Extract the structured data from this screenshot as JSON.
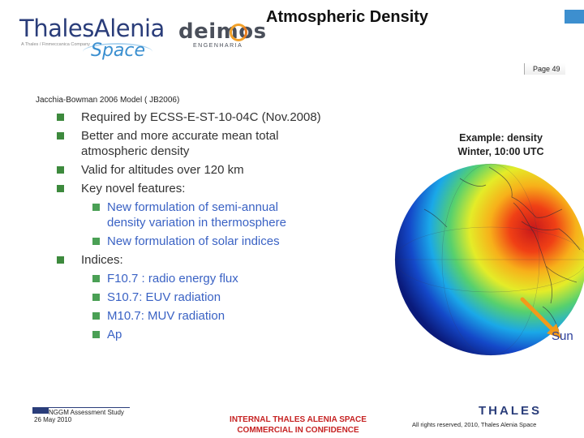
{
  "header": {
    "logo_thales": {
      "brand": "ThalesAlenia",
      "tagline": "A Thales / Finmeccanica Company",
      "space": "Space"
    },
    "logo_deimos": {
      "word": "deimos",
      "sub": "ENGENHARIA"
    },
    "title": "Atmospheric Density",
    "page_label": "Page 49"
  },
  "content": {
    "model_heading": "Jacchia-Bowman 2006 Model ( JB2006)",
    "bullets": [
      {
        "text": "Required by ECSS-E-ST-10-04C (Nov.2008)",
        "level": 1
      },
      {
        "text": "Better and more accurate mean total",
        "level": 1
      },
      {
        "text": "atmospheric density",
        "level": 1,
        "continuation": true
      },
      {
        "text": "Valid for altitudes over 120 km",
        "level": 1
      },
      {
        "text": "Key novel features:",
        "level": 1
      },
      {
        "text": "New formulation of semi-annual",
        "level": 2
      },
      {
        "text": "density variation in thermosphere",
        "level": 2,
        "continuation": true
      },
      {
        "text": "New formulation of solar indices",
        "level": 2
      },
      {
        "text": "Indices:",
        "level": 1
      },
      {
        "text": "F10.7 : radio energy flux",
        "level": 2
      },
      {
        "text": "S10.7: EUV radiation",
        "level": 2
      },
      {
        "text": "M10.7: MUV radiation",
        "level": 2
      },
      {
        "text": "Ap",
        "level": 2
      }
    ],
    "example_caption_line1": "Example: density",
    "example_caption_line2": "Winter, 10:00 UTC",
    "sun_label": "Sun"
  },
  "colors": {
    "bullet_green": "#3d8a3d",
    "sub_text_blue": "#3a62c4",
    "brand_navy": "#2a3d7a",
    "classification_red": "#c62323"
  },
  "footer": {
    "study": "NGGM Assessment Study",
    "date": "26 May 2010",
    "classification_line1": "INTERNAL THALES ALENIA SPACE",
    "classification_line2": "COMMERCIAL IN CONFIDENCE",
    "thales_logo": "THALES",
    "rights": "All rights reserved, 2010, Thales Alenia Space"
  }
}
